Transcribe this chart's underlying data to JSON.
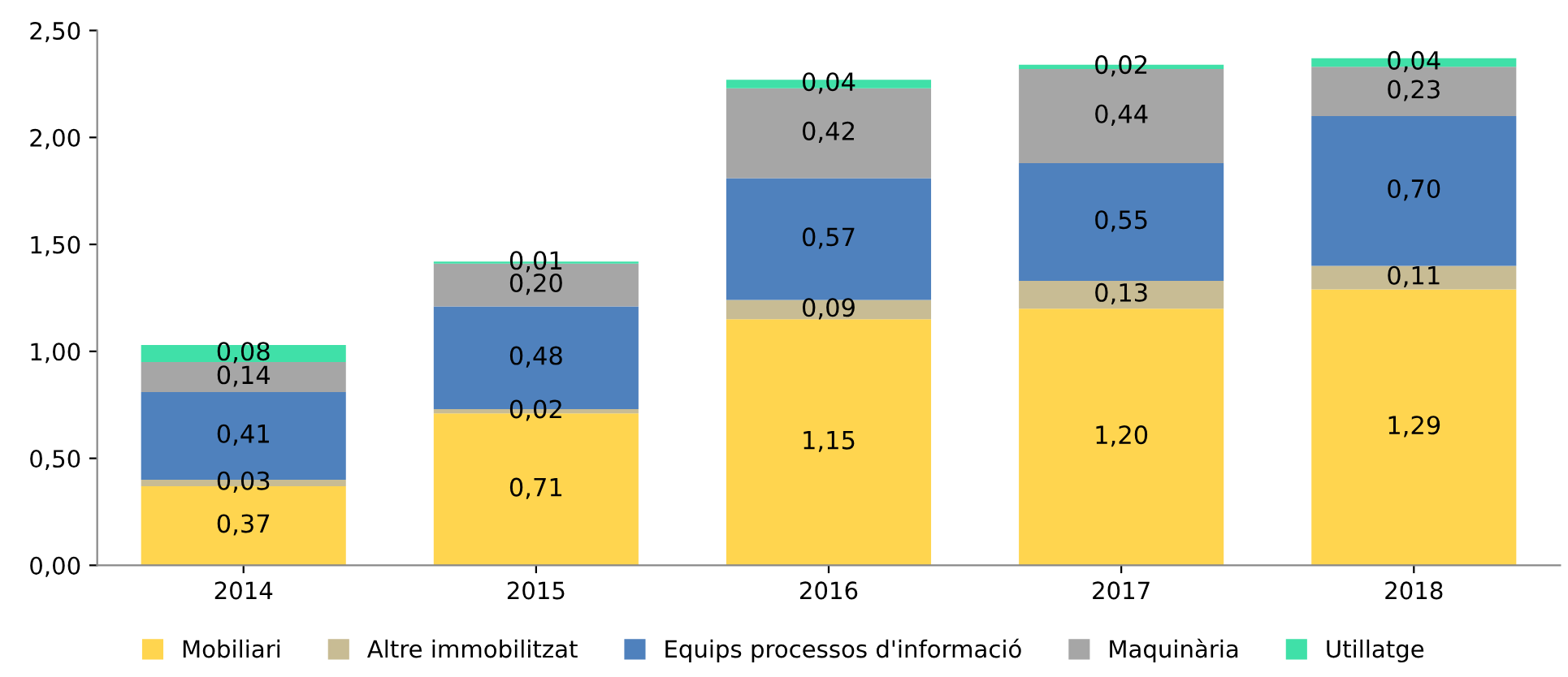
{
  "chart_data": {
    "type": "bar",
    "stacked": true,
    "categories": [
      "2014",
      "2015",
      "2016",
      "2017",
      "2018"
    ],
    "series": [
      {
        "name": "Mobiliari",
        "color": "#ffd54f",
        "values": [
          0.37,
          0.71,
          1.15,
          1.2,
          1.29
        ],
        "value_labels": [
          "0,37",
          "0,71",
          "1,15",
          "1,20",
          "1,29"
        ]
      },
      {
        "name": "Altre immobilitzat",
        "color": "#c8bc94",
        "values": [
          0.03,
          0.02,
          0.09,
          0.13,
          0.11
        ],
        "value_labels": [
          "0,03",
          "0,02",
          "0,09",
          "0,13",
          "0,11"
        ]
      },
      {
        "name": "Equips processos d'informació",
        "color": "#4f81bd",
        "values": [
          0.41,
          0.48,
          0.57,
          0.55,
          0.7
        ],
        "value_labels": [
          "0,41",
          "0,48",
          "0,57",
          "0,55",
          "0,70"
        ]
      },
      {
        "name": "Maquinària",
        "color": "#a6a6a6",
        "values": [
          0.14,
          0.2,
          0.42,
          0.44,
          0.23
        ],
        "value_labels": [
          "0,14",
          "0,20",
          "0,42",
          "0,44",
          "0,23"
        ]
      },
      {
        "name": "Utillatge",
        "color": "#40e0a8",
        "values": [
          0.08,
          0.01,
          0.04,
          0.02,
          0.04
        ],
        "value_labels": [
          "0,08",
          "0,01",
          "0,04",
          "0,02",
          "0,04"
        ]
      }
    ],
    "ylim": [
      0,
      2.5
    ],
    "yticks": [
      {
        "value": 0,
        "label": "0,00"
      },
      {
        "value": 0.5,
        "label": "0,50"
      },
      {
        "value": 1.0,
        "label": "1,00"
      },
      {
        "value": 1.5,
        "label": "1,50"
      },
      {
        "value": 2.0,
        "label": "2,00"
      },
      {
        "value": 2.5,
        "label": "2,50"
      }
    ],
    "grid": false,
    "legend": "bottom"
  }
}
